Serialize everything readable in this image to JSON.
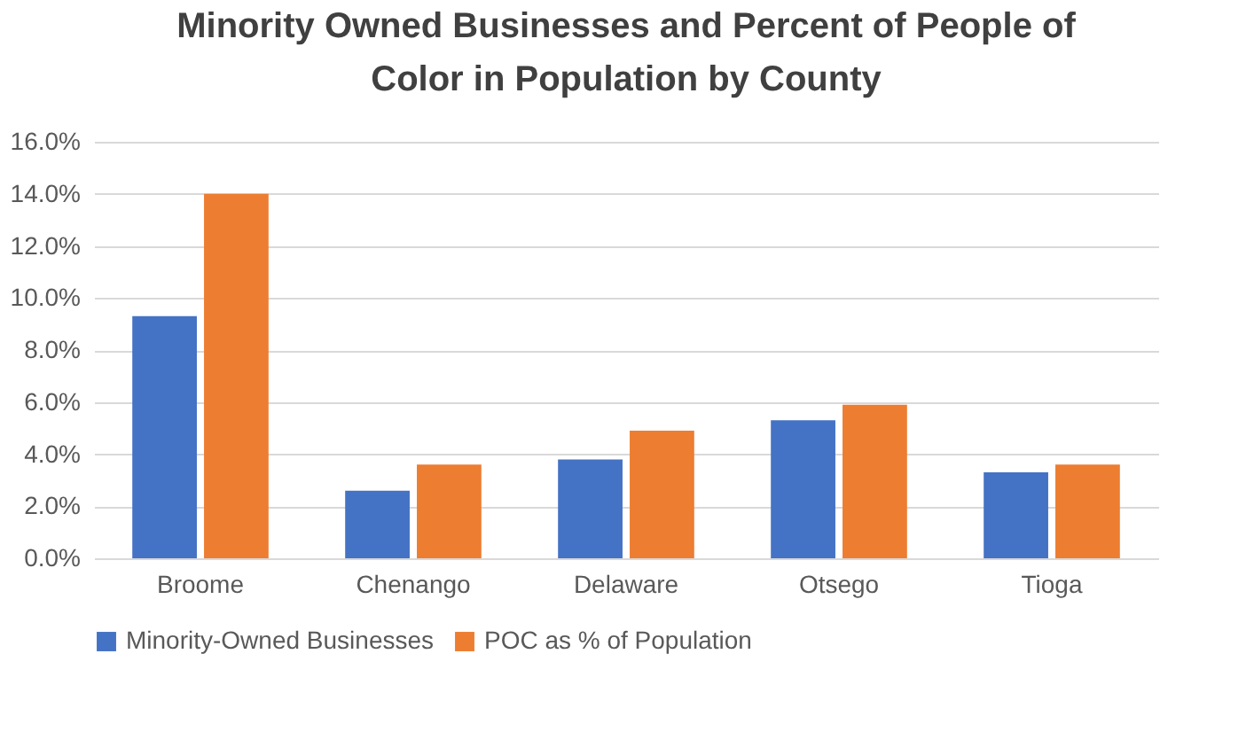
{
  "chart_data": {
    "type": "bar",
    "title": "Minority Owned Businesses and Percent of People of Color in Population by County",
    "categories": [
      "Broome",
      "Chenango",
      "Delaware",
      "Otsego",
      "Tioga"
    ],
    "series": [
      {
        "name": "Minority-Owned Businesses",
        "color": "#4472c4",
        "values": [
          9.3,
          2.6,
          3.8,
          5.3,
          3.3
        ]
      },
      {
        "name": "POC as % of Population",
        "color": "#ed7d31",
        "values": [
          14.0,
          3.6,
          4.9,
          5.9,
          3.6
        ]
      }
    ],
    "ylim": [
      0,
      16
    ],
    "yticks": [
      {
        "value": 0,
        "label": "0.0%"
      },
      {
        "value": 2,
        "label": "2.0%"
      },
      {
        "value": 4,
        "label": "4.0%"
      },
      {
        "value": 6,
        "label": "6.0%"
      },
      {
        "value": 8,
        "label": "8.0%"
      },
      {
        "value": 10,
        "label": "10.0%"
      },
      {
        "value": 12,
        "label": "12.0%"
      },
      {
        "value": 14,
        "label": "14.0%"
      },
      {
        "value": 16,
        "label": "16.0%"
      }
    ],
    "grid": "y",
    "legend": "bottom"
  }
}
